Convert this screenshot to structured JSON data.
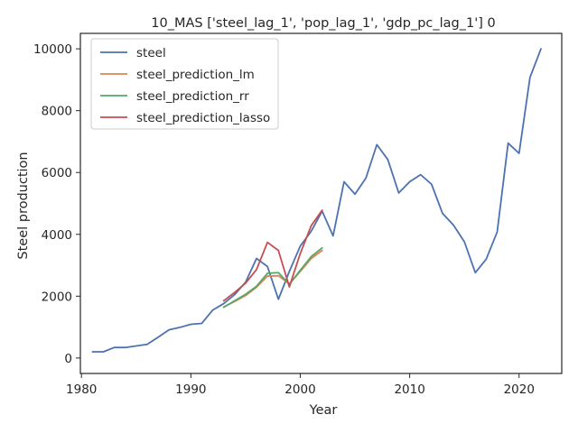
{
  "chart_data": {
    "type": "line",
    "title": "10_MAS ['steel_lag_1', 'pop_lag_1', 'gdp_pc_lag_1'] 0",
    "xlabel": "Year",
    "ylabel": "Steel production",
    "xlim": [
      1979.9,
      2023.9
    ],
    "ylim": [
      -500,
      10500
    ],
    "xticks": [
      1980,
      1990,
      2000,
      2010,
      2020
    ],
    "yticks": [
      0,
      2000,
      4000,
      6000,
      8000,
      10000
    ],
    "grid": false,
    "legend_position": "top-left",
    "series": [
      {
        "name": "steel",
        "color": "#4c72b0",
        "x": [
          1981,
          1982,
          1983,
          1984,
          1985,
          1986,
          1987,
          1988,
          1989,
          1990,
          1991,
          1992,
          1993,
          1994,
          1995,
          1996,
          1997,
          1998,
          1999,
          2000,
          2001,
          2002,
          2003,
          2004,
          2005,
          2006,
          2007,
          2008,
          2009,
          2010,
          2011,
          2012,
          2013,
          2014,
          2015,
          2016,
          2017,
          2018,
          2019,
          2020,
          2021,
          2022
        ],
        "y": [
          200,
          200,
          340,
          340,
          390,
          440,
          670,
          910,
          990,
          1090,
          1120,
          1550,
          1760,
          2050,
          2450,
          3220,
          2960,
          1900,
          2800,
          3620,
          4100,
          4750,
          3950,
          5700,
          5300,
          5820,
          6900,
          6420,
          5340,
          5700,
          5930,
          5620,
          4680,
          4300,
          3760,
          2760,
          3200,
          4080,
          6950,
          6620,
          9080,
          10000
        ]
      },
      {
        "name": "steel_prediction_lm",
        "color": "#dd8452",
        "x": [
          1993,
          1994,
          1995,
          1996,
          1997,
          1998,
          1999,
          2000,
          2001,
          2002
        ],
        "y": [
          1650,
          1830,
          2020,
          2290,
          2650,
          2660,
          2400,
          2800,
          3220,
          3480
        ]
      },
      {
        "name": "steel_prediction_rr",
        "color": "#55a868",
        "x": [
          1993,
          1994,
          1995,
          1996,
          1997,
          1998,
          1999,
          2000,
          2001,
          2002
        ],
        "y": [
          1640,
          1850,
          2060,
          2320,
          2740,
          2760,
          2380,
          2840,
          3280,
          3560
        ]
      },
      {
        "name": "steel_prediction_lasso",
        "color": "#c44e52",
        "x": [
          1993,
          1994,
          1995,
          1996,
          1997,
          1998,
          1999,
          2000,
          2001,
          2002
        ],
        "y": [
          1850,
          2120,
          2420,
          2860,
          3740,
          3480,
          2300,
          3380,
          4280,
          4780
        ]
      }
    ]
  }
}
